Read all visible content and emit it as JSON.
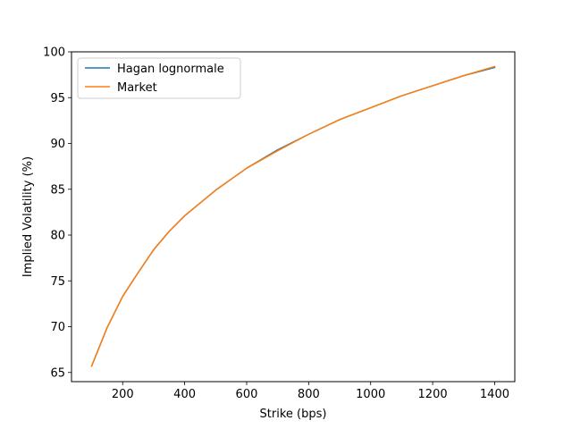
{
  "chart_data": {
    "type": "line",
    "title": "",
    "xlabel": "Strike (bps)",
    "ylabel": "Implied Volatility (%)",
    "xlim": [
      35,
      1465
    ],
    "ylim": [
      64,
      100
    ],
    "xticks": [
      200,
      400,
      600,
      800,
      1000,
      1200,
      1400
    ],
    "yticks": [
      65,
      70,
      75,
      80,
      85,
      90,
      95,
      100
    ],
    "grid": false,
    "legend_position": "top-left",
    "series": [
      {
        "name": "Hagan lognormale",
        "color": "#1f77b4",
        "x": [
          100,
          150,
          200,
          250,
          300,
          350,
          400,
          500,
          600,
          700,
          800,
          900,
          1000,
          1100,
          1200,
          1300,
          1400
        ],
        "y": [
          65.7,
          69.9,
          73.3,
          75.9,
          78.4,
          80.4,
          82.1,
          84.9,
          87.3,
          89.3,
          91.0,
          92.6,
          93.9,
          95.2,
          96.3,
          97.4,
          98.3
        ]
      },
      {
        "name": "Market",
        "color": "#ff7f0e",
        "x": [
          100,
          150,
          200,
          250,
          300,
          350,
          400,
          500,
          600,
          700,
          800,
          900,
          1000,
          1100,
          1200,
          1300,
          1400
        ],
        "y": [
          65.7,
          69.9,
          73.3,
          75.9,
          78.4,
          80.4,
          82.1,
          84.9,
          87.3,
          89.2,
          91.0,
          92.6,
          93.9,
          95.2,
          96.3,
          97.4,
          98.4
        ]
      }
    ]
  }
}
